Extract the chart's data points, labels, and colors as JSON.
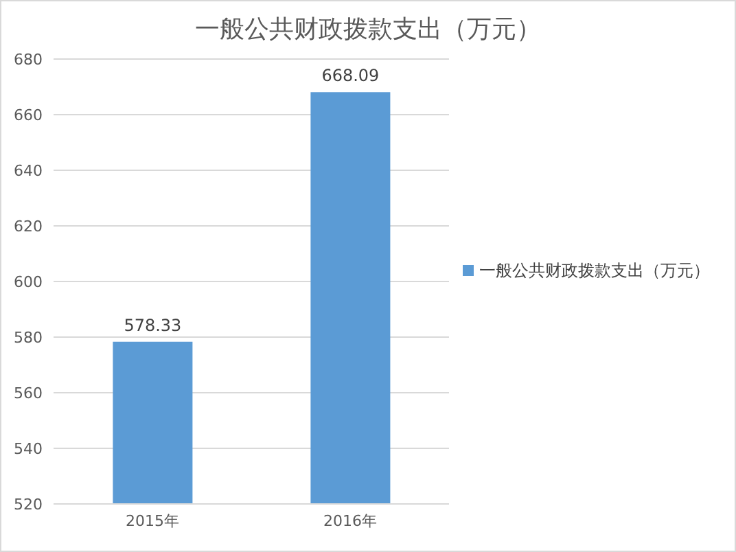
{
  "chart_data": {
    "type": "bar",
    "title": "一般公共财政拨款支出（万元）",
    "categories": [
      "2015年",
      "2016年"
    ],
    "series": [
      {
        "name": "一般公共财政拨款支出（万元）",
        "color": "#5b9bd5",
        "values": [
          578.33,
          668.09
        ]
      }
    ],
    "ylim": [
      520,
      680
    ],
    "yticks": [
      520,
      540,
      560,
      580,
      600,
      620,
      640,
      660,
      680
    ],
    "grid": "y",
    "legend": "right",
    "data_labels": true
  }
}
